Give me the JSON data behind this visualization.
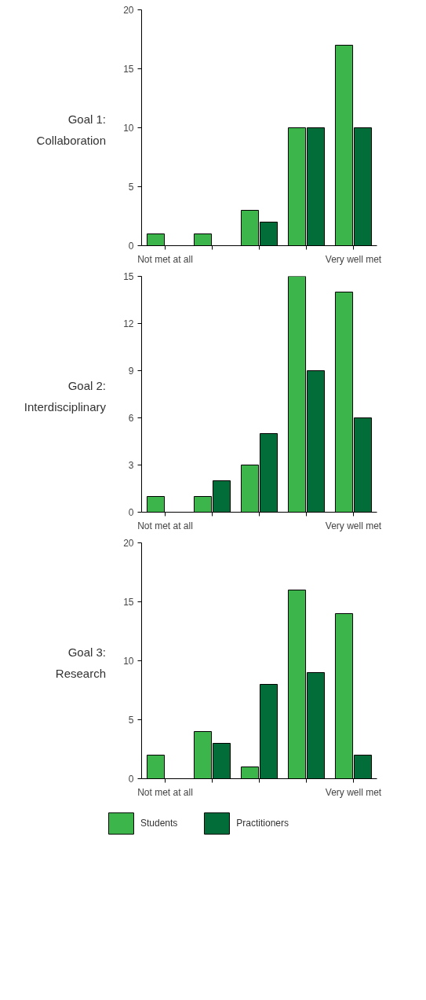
{
  "chart_data": [
    {
      "type": "bar",
      "title": "Goal 1:",
      "subtitle": "Collaboration",
      "categories": [
        "Not met at all",
        null,
        null,
        null,
        "Very well met"
      ],
      "ylim": [
        0,
        20
      ],
      "yticks": [
        0,
        5,
        10,
        15,
        20
      ],
      "grid": false,
      "legend": false,
      "series": [
        {
          "color": "#3cb54a",
          "values": [
            1,
            1,
            3,
            10,
            17
          ]
        },
        {
          "color": "#036d3a",
          "values": [
            0,
            0,
            2,
            10,
            10
          ]
        }
      ]
    },
    {
      "type": "bar",
      "title": "Goal 2:",
      "subtitle": "Interdisciplinary",
      "categories": [
        "Not met at all",
        null,
        null,
        null,
        "Very well met"
      ],
      "ylim": [
        0,
        15
      ],
      "yticks": [
        0,
        3,
        6,
        9,
        12,
        15
      ],
      "grid": false,
      "legend": false,
      "series": [
        {
          "color": "#3cb54a",
          "values": [
            1,
            1,
            3,
            15,
            14
          ]
        },
        {
          "color": "#036d3a",
          "values": [
            0,
            2,
            5,
            9,
            6
          ]
        }
      ]
    },
    {
      "type": "bar",
      "title": "Goal 3:",
      "subtitle": "Research",
      "categories": [
        "Not met at all",
        null,
        null,
        null,
        "Very well met"
      ],
      "ylim": [
        0,
        20
      ],
      "yticks": [
        0,
        5,
        10,
        15,
        20
      ],
      "grid": false,
      "legend": "bottom",
      "series": [
        {
          "name": "Students",
          "color": "#3cb54a",
          "values": [
            2,
            4,
            1,
            16,
            14
          ]
        },
        {
          "name": "Practitioners",
          "color": "#036d3a",
          "values": [
            0,
            3,
            8,
            9,
            2
          ]
        }
      ]
    }
  ]
}
